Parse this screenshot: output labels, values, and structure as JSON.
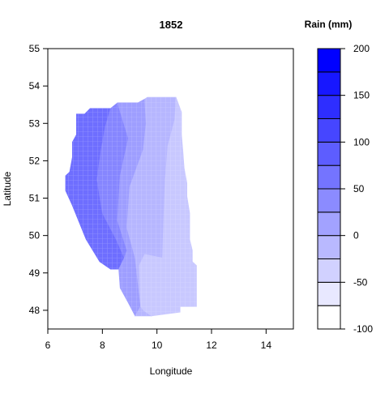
{
  "chart_data": {
    "type": "heatmap",
    "title": "1852",
    "xlabel": "Longitude",
    "ylabel": "Latitude",
    "xlim": [
      6,
      15
    ],
    "ylim": [
      47.5,
      55
    ],
    "x_ticks": [
      6,
      8,
      10,
      12,
      14
    ],
    "y_ticks": [
      48,
      49,
      50,
      51,
      52,
      53,
      54,
      55
    ],
    "grid": false,
    "legend": {
      "title": "Rain (mm)",
      "placement": "right",
      "min": -100,
      "max": 200,
      "step": 25,
      "ticks": [
        200,
        150,
        100,
        50,
        0,
        -50,
        -100
      ],
      "low_color": "#ffffff",
      "high_color": "#0000ff"
    },
    "regions": [
      {
        "value": 50,
        "color": "#6e6eff",
        "polygon": [
          [
            6.65,
            51.2
          ],
          [
            6.65,
            51.6
          ],
          [
            6.8,
            51.7
          ],
          [
            6.9,
            52.1
          ],
          [
            6.9,
            52.5
          ],
          [
            7.05,
            52.7
          ],
          [
            7.05,
            53.25
          ],
          [
            7.35,
            53.25
          ],
          [
            7.55,
            53.4
          ],
          [
            8.3,
            53.4
          ],
          [
            8.1,
            52.9
          ],
          [
            7.95,
            52.3
          ],
          [
            7.8,
            51.5
          ],
          [
            8.0,
            50.6
          ],
          [
            8.5,
            49.9
          ],
          [
            8.8,
            49.4
          ],
          [
            8.6,
            49.1
          ],
          [
            8.3,
            49.1
          ],
          [
            7.9,
            49.3
          ],
          [
            7.4,
            49.9
          ],
          [
            6.9,
            50.8
          ]
        ]
      },
      {
        "value": 25,
        "color": "#8686ff",
        "polygon": [
          [
            7.95,
            52.3
          ],
          [
            8.1,
            52.9
          ],
          [
            8.3,
            53.4
          ],
          [
            8.55,
            53.55
          ],
          [
            9.3,
            53.55
          ],
          [
            8.95,
            52.6
          ],
          [
            8.65,
            51.6
          ],
          [
            8.55,
            50.4
          ],
          [
            8.9,
            49.6
          ],
          [
            8.8,
            49.4
          ],
          [
            8.5,
            49.9
          ],
          [
            8.0,
            50.6
          ],
          [
            7.8,
            51.5
          ]
        ]
      },
      {
        "value": 10,
        "color": "#9e9eff",
        "polygon": [
          [
            8.55,
            53.55
          ],
          [
            9.3,
            53.55
          ],
          [
            9.55,
            53.65
          ],
          [
            9.6,
            53.0
          ],
          [
            9.5,
            52.3
          ],
          [
            9.0,
            51.3
          ],
          [
            8.9,
            50.2
          ],
          [
            9.2,
            49.4
          ],
          [
            9.4,
            48.1
          ],
          [
            9.2,
            47.85
          ],
          [
            8.95,
            48.2
          ],
          [
            8.65,
            48.6
          ],
          [
            8.6,
            49.1
          ],
          [
            8.8,
            49.4
          ],
          [
            8.9,
            49.6
          ],
          [
            8.55,
            50.4
          ],
          [
            8.65,
            51.6
          ],
          [
            8.95,
            52.6
          ]
        ]
      },
      {
        "value": -10,
        "color": "#b6b6ff",
        "polygon": [
          [
            9.55,
            53.65
          ],
          [
            9.65,
            53.7
          ],
          [
            10.7,
            53.7
          ],
          [
            10.65,
            53.1
          ],
          [
            10.4,
            52.4
          ],
          [
            10.3,
            51.5
          ],
          [
            10.25,
            50.5
          ],
          [
            10.2,
            49.4
          ],
          [
            9.55,
            49.5
          ],
          [
            9.35,
            49.2
          ],
          [
            9.4,
            48.1
          ],
          [
            9.5,
            48.0
          ],
          [
            9.8,
            47.85
          ],
          [
            9.2,
            47.85
          ],
          [
            9.4,
            48.1
          ],
          [
            9.2,
            49.4
          ],
          [
            8.9,
            50.2
          ],
          [
            9.0,
            51.3
          ],
          [
            9.5,
            52.3
          ],
          [
            9.6,
            53.0
          ]
        ]
      },
      {
        "value": -30,
        "color": "#c8c8ff",
        "polygon": [
          [
            10.65,
            53.1
          ],
          [
            10.7,
            53.7
          ],
          [
            10.9,
            53.3
          ],
          [
            10.9,
            52.7
          ],
          [
            10.95,
            52.3
          ],
          [
            11.0,
            51.8
          ],
          [
            11.1,
            51.4
          ],
          [
            11.1,
            51.05
          ],
          [
            11.2,
            50.6
          ],
          [
            11.2,
            49.9
          ],
          [
            11.3,
            49.6
          ],
          [
            11.3,
            49.3
          ],
          [
            11.45,
            49.2
          ],
          [
            11.45,
            48.1
          ],
          [
            10.85,
            48.1
          ],
          [
            10.85,
            47.95
          ],
          [
            9.8,
            47.85
          ],
          [
            9.5,
            48.0
          ],
          [
            9.4,
            48.1
          ],
          [
            9.35,
            49.2
          ],
          [
            9.55,
            49.5
          ],
          [
            10.2,
            49.4
          ],
          [
            10.25,
            50.5
          ],
          [
            10.3,
            51.5
          ],
          [
            10.4,
            52.4
          ]
        ]
      }
    ]
  }
}
